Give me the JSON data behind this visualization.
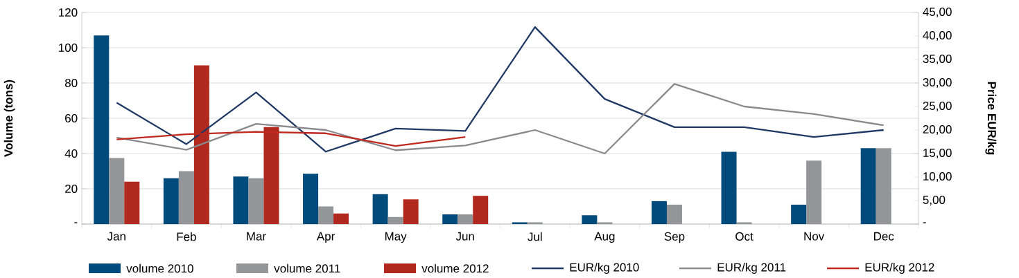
{
  "chart_data": {
    "type": "bar",
    "categories": [
      "Jan",
      "Feb",
      "Mar",
      "Apr",
      "May",
      "Jun",
      "Jul",
      "Aug",
      "Sep",
      "Oct",
      "Nov",
      "Dec"
    ],
    "ylabel": "Volume (tons)",
    "y2label": "Price EUR/kg",
    "ylim": [
      0,
      120
    ],
    "yticks": [
      {
        "value": 0,
        "label": "-"
      },
      20,
      40,
      60,
      80,
      100,
      120
    ],
    "y2lim": [
      0,
      45
    ],
    "y2ticks": [
      {
        "value": 0,
        "label": "-"
      },
      {
        "value": 5,
        "label": "5,00"
      },
      {
        "value": 10,
        "label": "10,00"
      },
      {
        "value": 15,
        "label": "15,00"
      },
      {
        "value": 20,
        "label": "20,00"
      },
      {
        "value": 25,
        "label": "25,00"
      },
      {
        "value": 30,
        "label": "30,00"
      },
      {
        "value": 35,
        "label": "35,00"
      },
      {
        "value": 40,
        "label": "40,00"
      },
      {
        "value": 45,
        "label": "45,00"
      }
    ],
    "grid": "y",
    "legend": "bottom",
    "series": [
      {
        "name": "volume 2010",
        "type": "bar",
        "color": "#004a7c",
        "values": [
          107,
          26,
          27,
          28.5,
          17,
          5.5,
          1,
          5,
          13,
          41,
          11,
          43
        ]
      },
      {
        "name": "volume 2011",
        "type": "bar",
        "color": "#939598",
        "values": [
          37.5,
          30,
          26,
          10,
          4,
          5.5,
          1,
          1,
          11,
          1,
          36,
          43
        ]
      },
      {
        "name": "volume 2012",
        "type": "bar",
        "color": "#b0281e",
        "values": [
          24,
          90,
          55,
          6,
          14,
          16,
          null,
          null,
          null,
          null,
          null,
          null
        ]
      },
      {
        "name": "EUR/kg 2010",
        "type": "line",
        "axis": "y2",
        "color": "#1f3864",
        "values": [
          25.8,
          17,
          28,
          15.4,
          20.3,
          19.8,
          41.9,
          26.6,
          20.6,
          20.6,
          18.5,
          20
        ]
      },
      {
        "name": "EUR/kg 2011",
        "type": "line",
        "axis": "y2",
        "color": "#8a8a8e",
        "values": [
          18.4,
          15.8,
          21.3,
          20,
          15.7,
          16.7,
          20,
          15,
          29.8,
          25,
          23.4,
          21
        ]
      },
      {
        "name": "EUR/kg 2012",
        "type": "line",
        "axis": "y2",
        "color": "#c0281e",
        "values": [
          18,
          19.1,
          19.6,
          19.3,
          16.6,
          18.5,
          null,
          null,
          null,
          null,
          null,
          null
        ]
      }
    ]
  }
}
